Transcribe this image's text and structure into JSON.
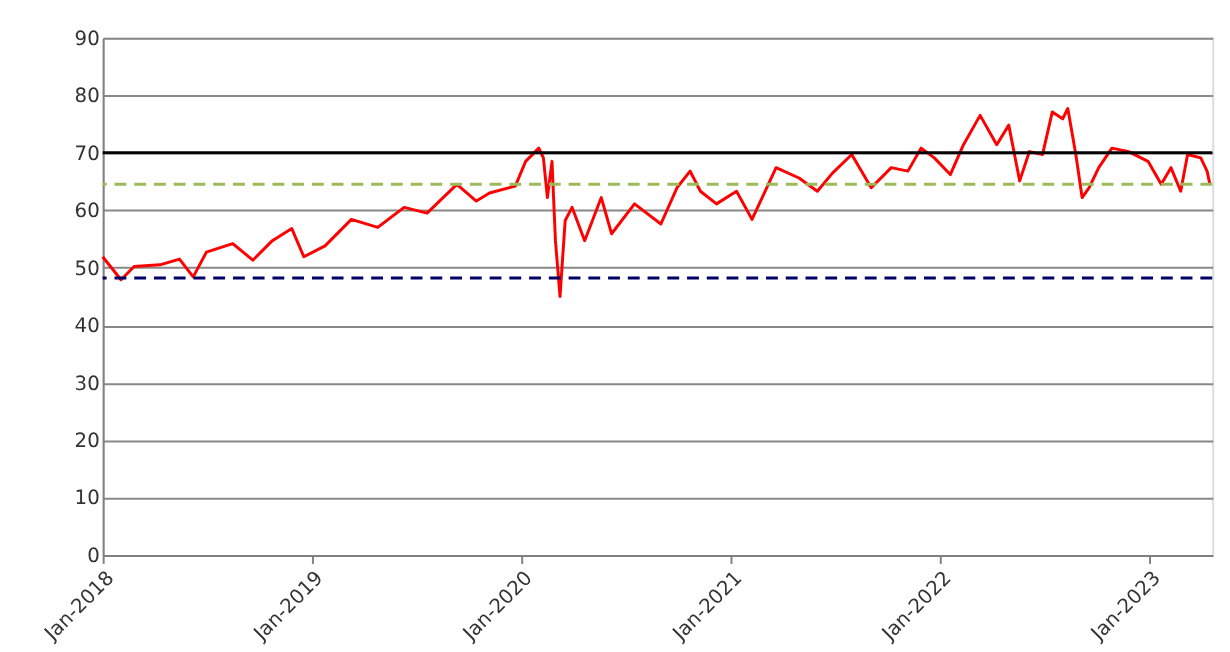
{
  "chart_data": {
    "type": "line",
    "x": [
      "2018-01-01",
      "2018-02-02",
      "2018-02-25",
      "2018-04-11",
      "2018-05-15",
      "2018-06-08",
      "2018-07-01",
      "2018-08-16",
      "2018-09-20",
      "2018-10-24",
      "2018-11-27",
      "2018-12-18",
      "2019-01-24",
      "2019-03-11",
      "2019-04-26",
      "2019-06-11",
      "2019-07-21",
      "2019-09-11",
      "2019-10-15",
      "2019-11-07",
      "2019-12-22",
      "2020-01-09",
      "2020-02-01",
      "2020-02-09",
      "2020-02-16",
      "2020-02-24",
      "2020-03-01",
      "2020-03-09",
      "2020-03-18",
      "2020-03-30",
      "2020-04-21",
      "2020-05-20",
      "2020-06-07",
      "2020-07-17",
      "2020-09-01",
      "2020-09-29",
      "2020-10-22",
      "2020-11-09",
      "2020-12-07",
      "2021-01-11",
      "2021-02-07",
      "2021-03-21",
      "2021-04-30",
      "2021-06-01",
      "2021-06-27",
      "2021-07-31",
      "2021-09-03",
      "2021-10-08",
      "2021-11-06",
      "2021-11-29",
      "2021-12-22",
      "2022-01-19",
      "2022-02-11",
      "2022-03-12",
      "2022-04-10",
      "2022-05-01",
      "2022-05-20",
      "2022-06-06",
      "2022-06-29",
      "2022-07-16",
      "2022-08-03",
      "2022-08-12",
      "2022-08-26",
      "2022-09-06",
      "2022-09-18",
      "2022-10-05",
      "2022-10-28",
      "2022-11-26",
      "2022-12-30",
      "2023-01-22",
      "2023-02-08",
      "2023-02-25",
      "2023-03-09",
      "2023-04-01",
      "2023-04-12",
      "2023-04-17"
    ],
    "series": [
      {
        "color": "#ff0000",
        "values": [
          51.9,
          47.9,
          50.2,
          50.5,
          51.5,
          48.4,
          52.7,
          54.2,
          51.3,
          54.7,
          56.8,
          51.9,
          53.8,
          58.4,
          57.0,
          60.5,
          59.5,
          64.5,
          61.6,
          63.0,
          64.2,
          68.5,
          70.8,
          69.1,
          62.2,
          68.5,
          54.7,
          45.0,
          58.2,
          60.5,
          54.7,
          62.2,
          55.9,
          61.1,
          57.6,
          63.9,
          66.8,
          63.3,
          61.1,
          63.3,
          58.4,
          67.4,
          65.6,
          63.3,
          66.4,
          69.7,
          63.9,
          67.4,
          66.8,
          70.8,
          69.1,
          66.2,
          71.4,
          76.5,
          71.4,
          74.8,
          65.1,
          70.2,
          69.7,
          77.1,
          75.9,
          77.7,
          69.7,
          62.2,
          63.9,
          67.4,
          70.8,
          70.2,
          68.5,
          64.5,
          67.4,
          63.3,
          69.7,
          69.1,
          66.8,
          64.5
        ]
      }
    ],
    "xlim": [
      "2018-01-01",
      "2023-04-21"
    ],
    "xticks": [
      {
        "value": "2018-01-01",
        "label": "Jan-2018"
      },
      {
        "value": "2019-01-01",
        "label": "Jan-2019"
      },
      {
        "value": "2020-01-01",
        "label": "Jan-2020"
      },
      {
        "value": "2021-01-01",
        "label": "Jan-2021"
      },
      {
        "value": "2022-01-01",
        "label": "Jan-2022"
      },
      {
        "value": "2023-01-01",
        "label": "Jan-2023"
      }
    ],
    "ylim": [
      0,
      90
    ],
    "yticks": [
      0,
      10,
      20,
      30,
      40,
      50,
      60,
      70,
      80,
      90
    ],
    "grid": "y",
    "legend": false,
    "marker": "none",
    "line_style": "solid",
    "ref_lines": [
      {
        "axis": "y",
        "value": 70,
        "color": "#000000",
        "line_style": "solid"
      },
      {
        "axis": "y",
        "value": 64.5,
        "color": "#9bbb59",
        "line_style": "dashed"
      },
      {
        "axis": "y",
        "value": 48.2,
        "color": "#000066",
        "line_style": "dashed"
      }
    ]
  }
}
